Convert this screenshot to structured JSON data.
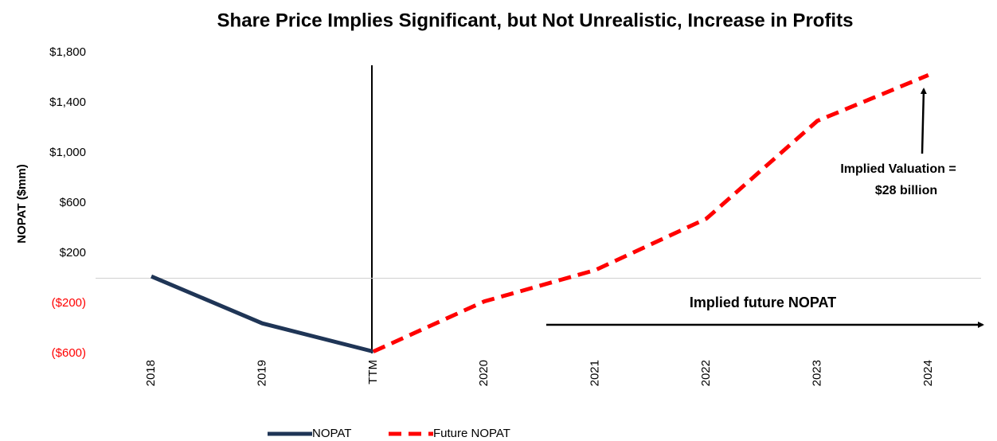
{
  "chart_data": {
    "type": "line",
    "title": "Share Price Implies Significant, but Not Unrealistic, Increase in Profits",
    "y_label": "NOPAT ($mm)",
    "categories": [
      "2018",
      "2019",
      "TTM",
      "2020",
      "2021",
      "2022",
      "2023",
      "2024"
    ],
    "series": [
      {
        "name": "NOPAT",
        "color": "#1f3556",
        "values": [
          15,
          -360,
          -585,
          null,
          null,
          null,
          null,
          null
        ]
      },
      {
        "name": "Future NOPAT",
        "color": "#ff0000",
        "values": [
          null,
          null,
          -585,
          -185,
          65,
          475,
          1255,
          1620
        ]
      }
    ],
    "ylim": [
      -600,
      1800
    ],
    "yticks": [
      {
        "value": 1800,
        "label": "$1,800"
      },
      {
        "value": 1400,
        "label": "$1,400"
      },
      {
        "value": 1000,
        "label": "$1,000"
      },
      {
        "value": 600,
        "label": "$600"
      },
      {
        "value": 200,
        "label": "$200"
      },
      {
        "value": -200,
        "label": "($200)"
      },
      {
        "value": -600,
        "label": "($600)"
      }
    ],
    "negative_tick_color": "#ff0000",
    "annotations": [
      "Implied Valuation =",
      "$28 billion",
      "Implied future NOPAT"
    ]
  }
}
